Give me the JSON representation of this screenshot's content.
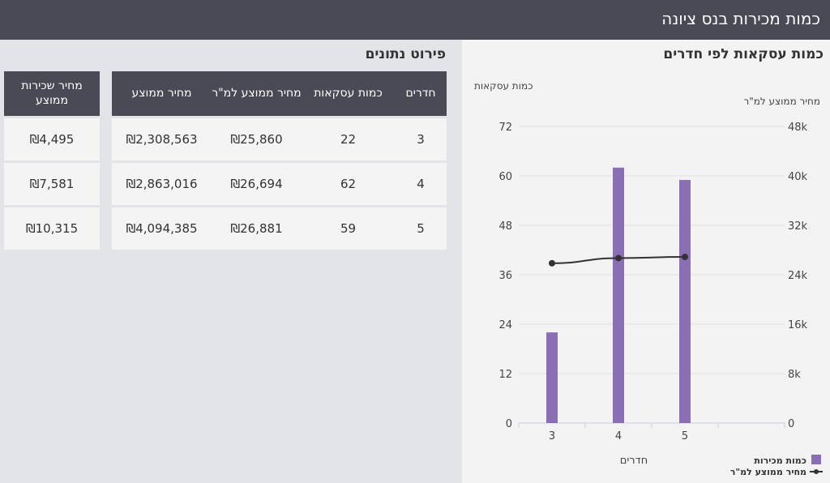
{
  "header": {
    "title": "כמות מכירות בנס ציונה"
  },
  "table": {
    "title": "פירוט נתונים",
    "columns": [
      "חדרים",
      "כמות עסקאות",
      "מחיר ממוצע למ\"ר",
      "מחיר ממוצע",
      "מחיר שכירות ממוצע"
    ],
    "rows": [
      [
        "3",
        "22",
        "₪25,860",
        "₪2,308,563",
        "₪4,495"
      ],
      [
        "4",
        "62",
        "₪26,694",
        "₪2,863,016",
        "₪7,581"
      ],
      [
        "5",
        "59",
        "₪26,881",
        "₪4,094,385",
        "₪10,315"
      ]
    ]
  },
  "chart": {
    "title": "כמות עסקאות לפי חדרים",
    "bar_color": "#8a6fb5",
    "line_color": "#333333"
  },
  "chart_data": {
    "type": "bar",
    "categories": [
      "3",
      "4",
      "5"
    ],
    "xlabel": "חדרים",
    "y_left_label": "כמות עסקאות",
    "y_right_label": "מחיר ממוצע למ\"ר",
    "y_left_ticks": [
      "0",
      "12",
      "24",
      "36",
      "48",
      "60",
      "72"
    ],
    "y_right_ticks": [
      "0",
      "8k",
      "16k",
      "24k",
      "32k",
      "40k",
      "48k"
    ],
    "ylim_left": [
      0,
      72
    ],
    "ylim_right": [
      0,
      48000
    ],
    "series": [
      {
        "name": "כמות מכירות",
        "type": "bar",
        "axis": "left",
        "values": [
          22,
          62,
          59
        ]
      },
      {
        "name": "מחיר ממוצע למ\"ר",
        "type": "line",
        "axis": "right",
        "values": [
          25860,
          26694,
          26881
        ]
      }
    ],
    "legend_position": "bottom-right",
    "grid": true
  }
}
